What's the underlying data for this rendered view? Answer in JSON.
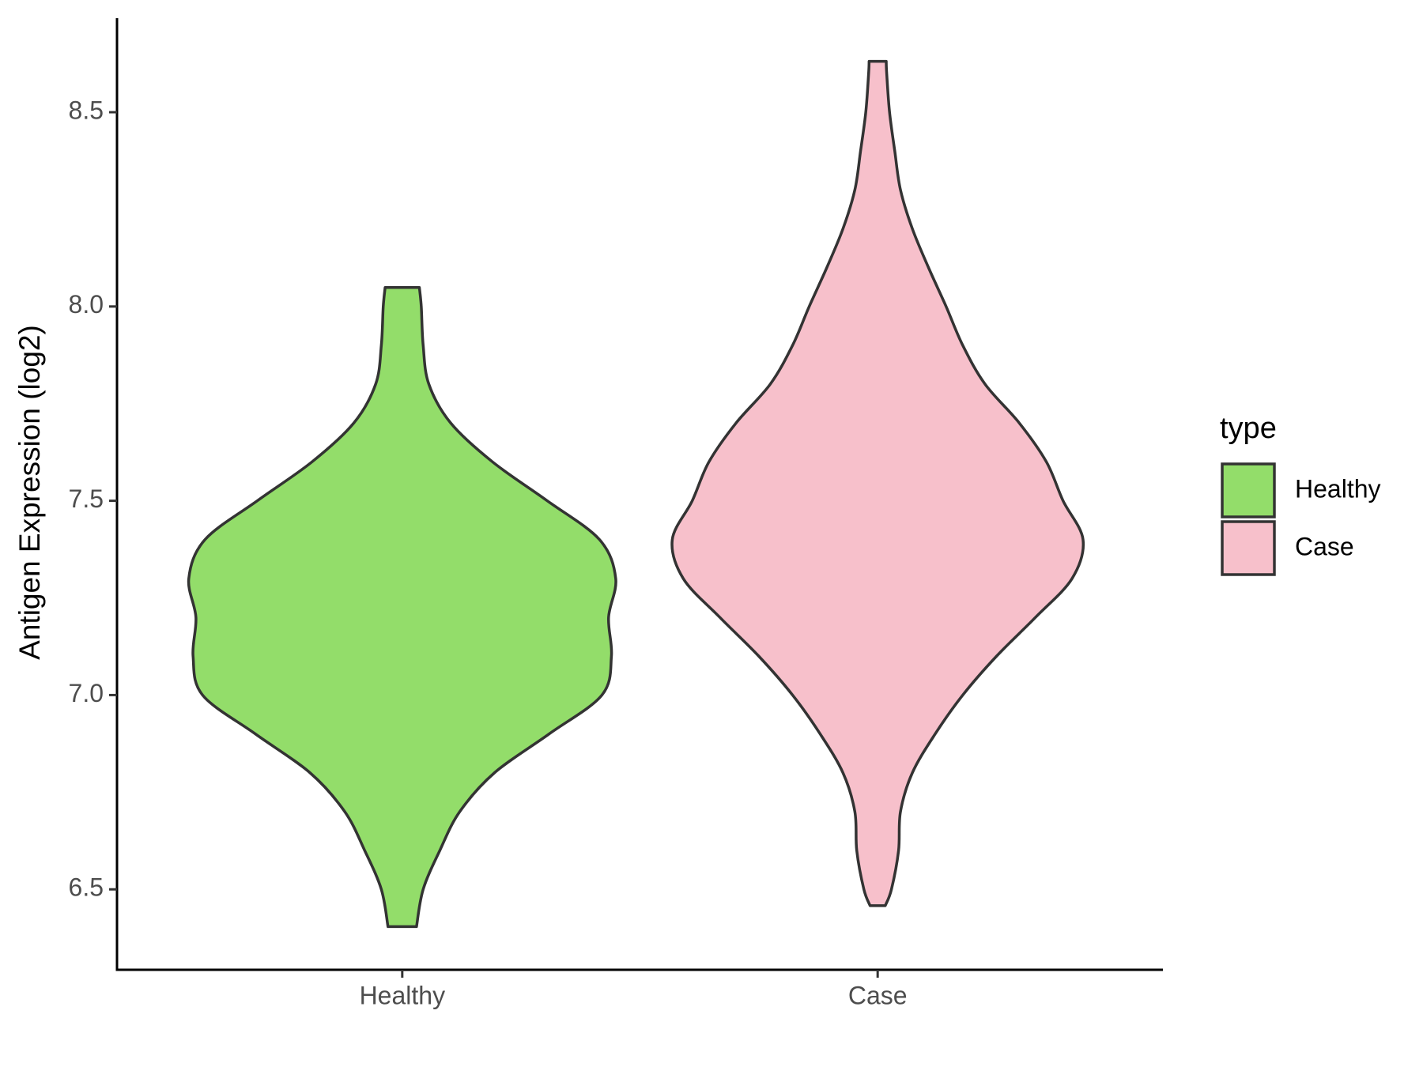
{
  "chart_data": {
    "type": "violin",
    "y_label": "Antigen Expression (log2)",
    "categories": [
      "Healthy",
      "Case"
    ],
    "legend_title": "type",
    "legend_position": "right",
    "ylim": [
      6.293,
      8.742
    ],
    "yticks": [
      6.5,
      {
        "value": 7,
        "label": "7.0"
      },
      7.5,
      {
        "value": 8,
        "label": "8.0"
      },
      8.5
    ],
    "series": [
      {
        "name": "Healthy",
        "color": "#93dd6a",
        "y": [
          6.404,
          6.5,
          6.6,
          6.7,
          6.8,
          6.9,
          7.0,
          7.1,
          7.2,
          7.3,
          7.4,
          7.5,
          7.6,
          7.7,
          7.8,
          7.9,
          8.0,
          8.049
        ],
        "width": [
          0.03,
          0.044,
          0.079,
          0.121,
          0.194,
          0.309,
          0.42,
          0.44,
          0.434,
          0.449,
          0.415,
          0.305,
          0.19,
          0.102,
          0.056,
          0.044,
          0.04,
          0.036
        ]
      },
      {
        "name": "Case",
        "color": "#f7c0cb",
        "y": [
          6.458,
          6.5,
          6.6,
          6.7,
          6.8,
          6.9,
          7.0,
          7.1,
          7.2,
          7.3,
          7.4,
          7.5,
          7.6,
          7.7,
          7.8,
          7.9,
          8.0,
          8.1,
          8.2,
          8.3,
          8.4,
          8.5,
          8.6,
          8.631
        ],
        "width": [
          0.016,
          0.029,
          0.044,
          0.048,
          0.073,
          0.121,
          0.179,
          0.25,
          0.332,
          0.409,
          0.432,
          0.39,
          0.355,
          0.298,
          0.226,
          0.179,
          0.144,
          0.107,
          0.073,
          0.048,
          0.036,
          0.025,
          0.019,
          0.018
        ]
      }
    ]
  }
}
